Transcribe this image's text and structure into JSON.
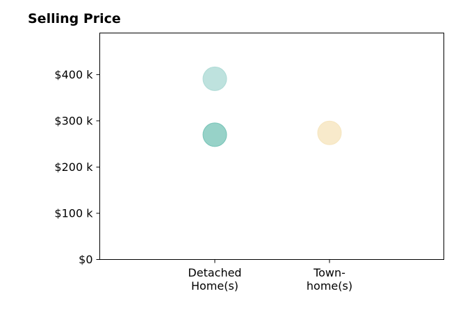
{
  "chart_data": {
    "type": "scatter",
    "title": "Selling Price",
    "xlabel": "",
    "ylabel": "",
    "categories": [
      [
        "Detached",
        "Home(s)"
      ],
      [
        "Town-",
        "home(s)"
      ]
    ],
    "ylim": [
      0,
      490000
    ],
    "yticks": [
      {
        "value": 0,
        "label": "$0"
      },
      {
        "value": 100000,
        "label": "$100 k"
      },
      {
        "value": 200000,
        "label": "$200 k"
      },
      {
        "value": 300000,
        "label": "$300 k"
      },
      {
        "value": 400000,
        "label": "$400 k"
      }
    ],
    "points": [
      {
        "category": 0,
        "value": 391000,
        "color": "#a8d8d3",
        "opacity": 0.75
      },
      {
        "category": 0,
        "value": 270000,
        "color": "#6fc0b3",
        "opacity": 0.72
      },
      {
        "category": 1,
        "value": 274000,
        "color": "#f5e3ba",
        "opacity": 0.75
      }
    ],
    "grid": false,
    "legend": "none"
  }
}
